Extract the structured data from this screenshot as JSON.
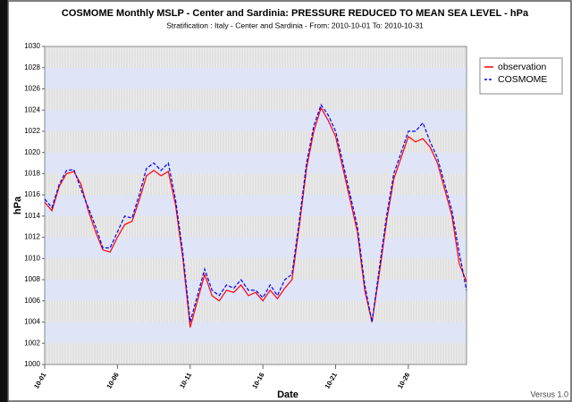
{
  "chart_data": {
    "type": "line",
    "title": "COSMOME Monthly MSLP - Center and Sardinia: PRESSURE REDUCED TO MEAN SEA LEVEL  - hPa",
    "subtitle": "Stratification : Italy - Center and Sardinia - From: 2010-10-01 To: 2010-10-31",
    "x_label": "Date",
    "y_label": "hPa",
    "watermark": "Versus 1.0",
    "x": [
      0,
      0.5,
      1,
      1.5,
      2,
      2.5,
      3,
      3.5,
      4,
      4.5,
      5,
      5.5,
      6,
      6.5,
      7,
      7.5,
      8,
      8.5,
      9,
      9.5,
      10,
      10.5,
      11,
      11.5,
      12,
      12.5,
      13,
      13.5,
      14,
      14.5,
      15,
      15.5,
      16,
      16.5,
      17,
      17.5,
      18,
      18.5,
      19,
      19.5,
      20,
      20.5,
      21,
      21.5,
      22,
      22.5,
      23,
      23.5,
      24,
      24.5,
      25,
      25.5,
      26,
      26.5,
      27,
      27.5,
      28,
      28.5,
      29
    ],
    "xlim": [
      0,
      29
    ],
    "xticks": [
      {
        "value": 0,
        "label": "10-01"
      },
      {
        "value": 5,
        "label": "10-06"
      },
      {
        "value": 10,
        "label": "10-11"
      },
      {
        "value": 15,
        "label": "10-16"
      },
      {
        "value": 20,
        "label": "10-21"
      },
      {
        "value": 25,
        "label": "10-26"
      }
    ],
    "ylim": [
      1000,
      1030
    ],
    "yticks": [
      1000,
      1002,
      1004,
      1006,
      1008,
      1010,
      1012,
      1014,
      1016,
      1018,
      1020,
      1022,
      1024,
      1026,
      1028,
      1030
    ],
    "grid": true,
    "legend": "upper right",
    "series": [
      {
        "name": "observation",
        "color": "#ff0000",
        "dashed": false,
        "values": [
          1015.3,
          1014.5,
          1016.8,
          1018.0,
          1018.2,
          1017.0,
          1014.5,
          1012.5,
          1010.8,
          1010.6,
          1012.0,
          1013.2,
          1013.5,
          1015.5,
          1017.8,
          1018.3,
          1017.8,
          1018.2,
          1015.0,
          1010.0,
          1003.5,
          1006.0,
          1008.5,
          1006.5,
          1006.0,
          1007.0,
          1006.8,
          1007.5,
          1006.5,
          1006.8,
          1006.0,
          1007.0,
          1006.2,
          1007.2,
          1008.0,
          1013.0,
          1018.5,
          1022.0,
          1024.2,
          1023.0,
          1021.5,
          1018.5,
          1015.5,
          1012.5,
          1007.0,
          1004.0,
          1008.5,
          1013.5,
          1017.5,
          1019.5,
          1021.5,
          1021.0,
          1021.3,
          1020.5,
          1019.0,
          1016.5,
          1014.0,
          1009.5,
          1007.8
        ]
      },
      {
        "name": "COSMOME",
        "color": "#0000ff",
        "dashed": true,
        "values": [
          1015.6,
          1014.8,
          1017.0,
          1018.3,
          1018.4,
          1016.5,
          1014.8,
          1013.0,
          1011.0,
          1011.0,
          1012.5,
          1014.0,
          1013.8,
          1016.0,
          1018.5,
          1019.0,
          1018.3,
          1019.0,
          1015.5,
          1010.5,
          1004.0,
          1006.5,
          1009.0,
          1007.0,
          1006.5,
          1007.5,
          1007.2,
          1008.0,
          1007.0,
          1007.0,
          1006.3,
          1007.5,
          1006.5,
          1008.0,
          1008.5,
          1013.5,
          1019.0,
          1022.5,
          1024.5,
          1023.5,
          1022.0,
          1019.0,
          1016.0,
          1013.0,
          1007.5,
          1004.0,
          1009.0,
          1014.0,
          1018.0,
          1020.0,
          1022.0,
          1022.0,
          1022.8,
          1021.0,
          1019.5,
          1017.0,
          1014.5,
          1010.5,
          1007.0
        ]
      }
    ]
  }
}
